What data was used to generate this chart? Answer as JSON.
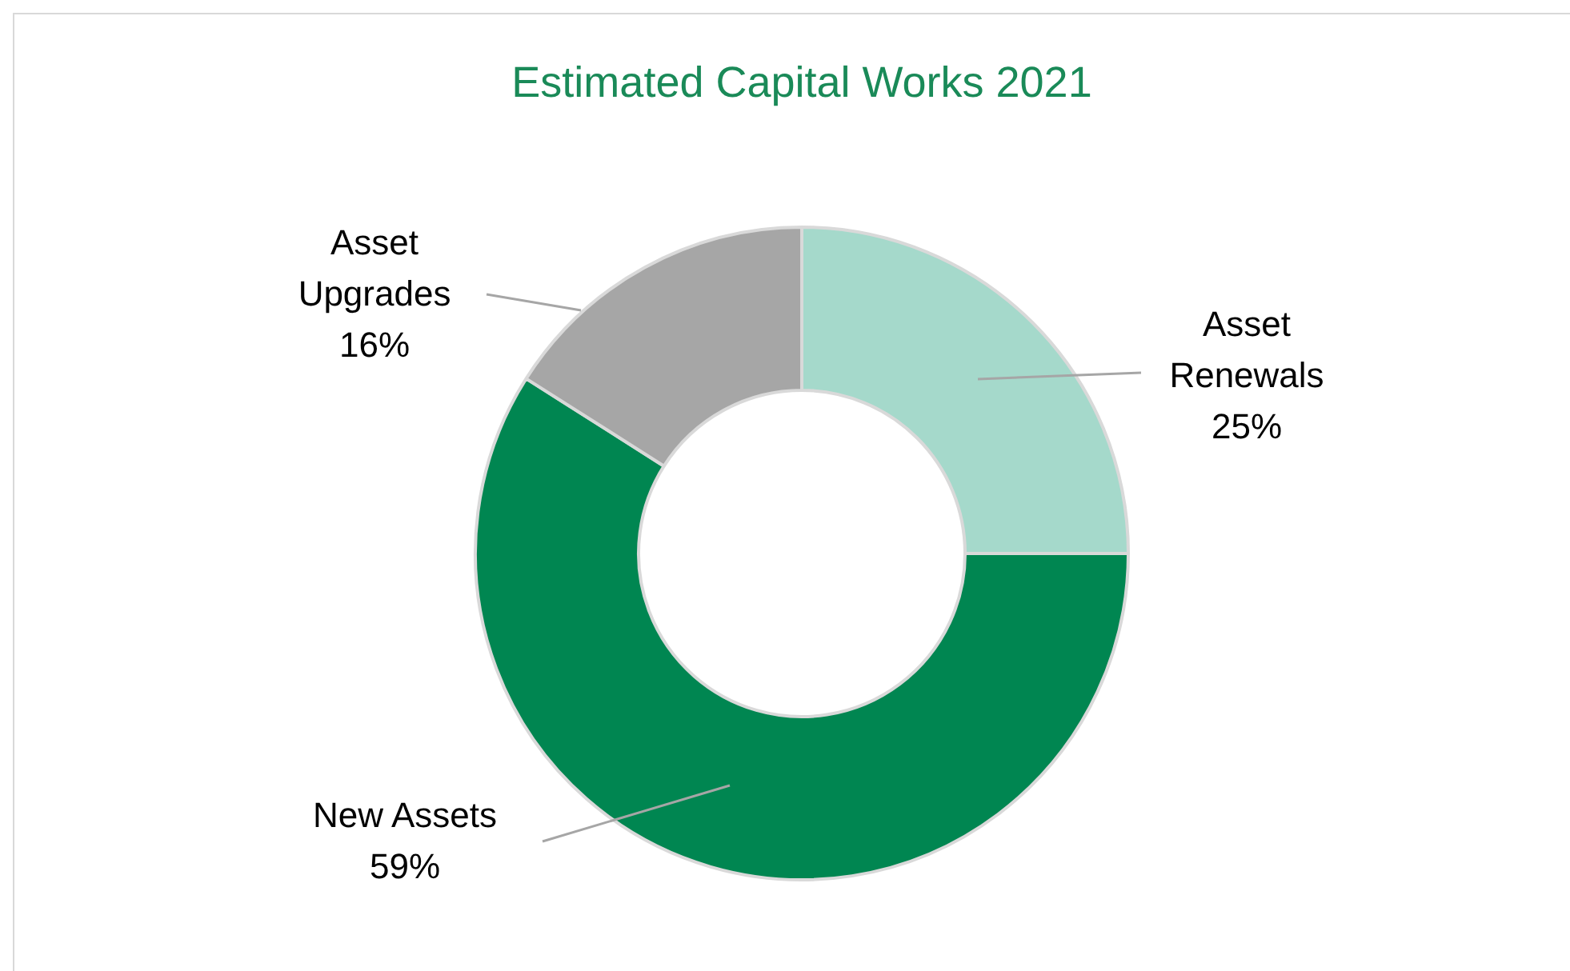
{
  "chart_data": {
    "type": "donut",
    "title": "Estimated Capital Works 2021",
    "categories": [
      "Asset Renewals",
      "New Assets",
      "Asset Upgrades"
    ],
    "values": [
      25,
      59,
      16
    ],
    "value_labels": [
      "25%",
      "59%",
      "16%"
    ],
    "colors": [
      "#a5d9cb",
      "#008651",
      "#a6a6a6"
    ],
    "legend": false
  }
}
